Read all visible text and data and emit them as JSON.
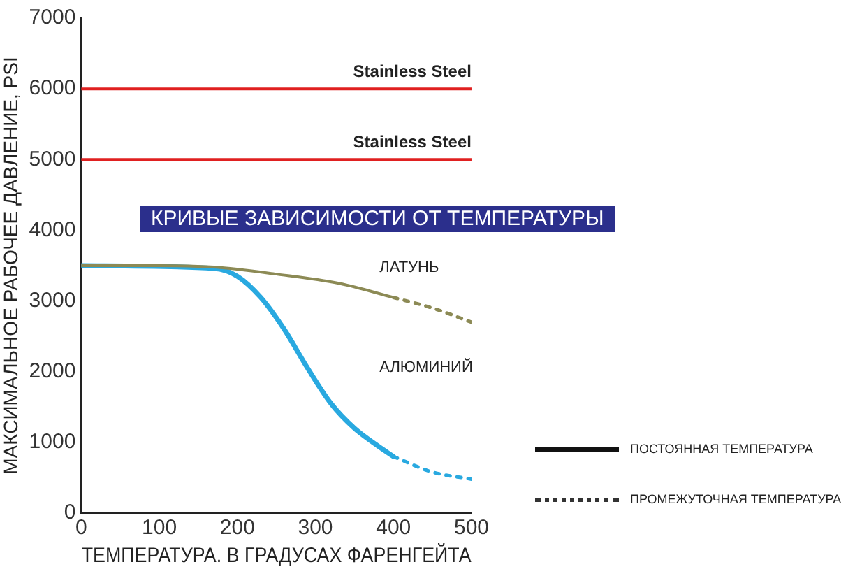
{
  "chart_data": {
    "type": "line",
    "title": "КРИВЫЕ ЗАВИСИМОСТИ ОТ ТЕМПЕРАТУРЫ",
    "xlabel": "ТЕМПЕРАТУРА. В ГРАДУСАХ ФАРЕНГЕЙТА",
    "ylabel": "МАКСИМАЛЬНОЕ РАБОЧЕЕ ДАВЛЕНИЕ, PSI",
    "series": [
      {
        "name": "ЛАТУНЬ",
        "color": "#8c8a55",
        "line_style": "solid",
        "x": [
          0,
          100,
          170,
          250,
          330,
          400
        ],
        "values": [
          3500,
          3500,
          3480,
          3380,
          3250,
          3050
        ]
      },
      {
        "color": "#8c8a55",
        "line_style": "dotted",
        "x": [
          400,
          450,
          500
        ],
        "values": [
          3050,
          2900,
          2700
        ]
      },
      {
        "name": "АЛЮМИНИЙ",
        "color": "#29a9e0",
        "line_style": "solid",
        "x": [
          0,
          170,
          200,
          230,
          260,
          290,
          320,
          350,
          380,
          400
        ],
        "values": [
          3500,
          3460,
          3350,
          3050,
          2600,
          2050,
          1550,
          1200,
          950,
          800
        ]
      },
      {
        "color": "#29a9e0",
        "line_style": "dotted",
        "x": [
          400,
          450,
          500
        ],
        "values": [
          800,
          580,
          480
        ]
      }
    ],
    "ref_lines": [
      {
        "axis": "y",
        "value": 6000,
        "label": "Stainless Steel",
        "color": "#e02020"
      },
      {
        "axis": "y",
        "value": 5000,
        "label": "Stainless Steel",
        "color": "#e02020"
      }
    ],
    "annotations": [
      "ПОСТОЯННАЯ ТЕМПЕРАТУРА",
      "ПРОМЕЖУТОЧНАЯ ТЕМПЕРАТУРА"
    ],
    "xlim": [
      0,
      500
    ],
    "xticks": [
      0,
      100,
      200,
      300,
      400,
      500
    ],
    "ylim": [
      0,
      7000
    ],
    "yticks": [
      0,
      1000,
      2000,
      3000,
      4000,
      5000,
      6000,
      7000
    ],
    "grid": false,
    "legend": false,
    "marker": "none"
  }
}
